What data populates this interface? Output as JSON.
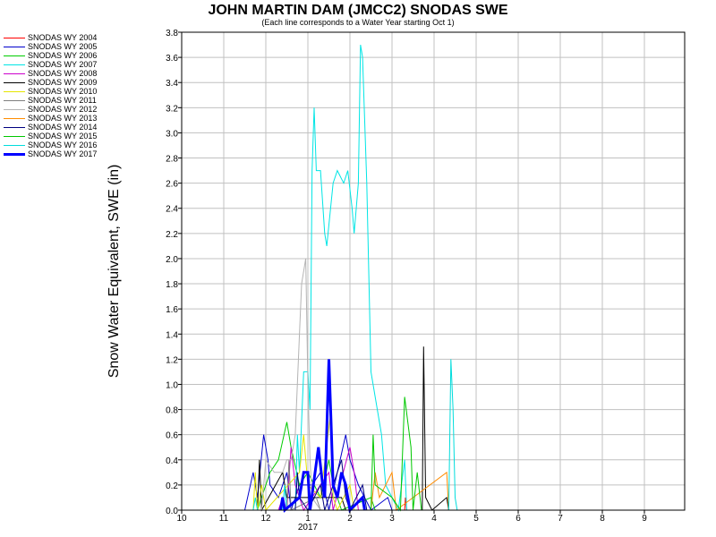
{
  "chart_data": {
    "type": "line",
    "title": "JOHN MARTIN DAM (JMCC2) SNODAS SWE",
    "subtitle": "(Each line corresponds to a Water Year starting Oct 1)",
    "ylabel": "Snow Water Equivalent, SWE (in)",
    "xlabel_year": "2017",
    "x_ticks": [
      "10",
      "11",
      "12",
      "1",
      "2",
      "3",
      "4",
      "5",
      "6",
      "7",
      "8",
      "9"
    ],
    "y_ticks": [
      "0.0",
      "0.2",
      "0.4",
      "0.6",
      "0.8",
      "1.0",
      "1.2",
      "1.4",
      "1.6",
      "1.8",
      "2.0",
      "2.2",
      "2.4",
      "2.6",
      "2.8",
      "3.0",
      "3.2",
      "3.4",
      "3.6",
      "3.8"
    ],
    "ylim": [
      0,
      3.8
    ],
    "grid": true,
    "legend_position": "left",
    "series": [
      {
        "name": "SNODAS WY 2004",
        "color": "#ff0000",
        "width": 1,
        "points": [
          [
            5.3,
            0
          ],
          [
            5.32,
            0.1
          ],
          [
            5.35,
            0
          ],
          [
            6.5,
            0
          ]
        ]
      },
      {
        "name": "SNODAS WY 2005",
        "color": "#0000cc",
        "width": 1,
        "points": [
          [
            1.5,
            0
          ],
          [
            1.7,
            0.3
          ],
          [
            1.8,
            0.1
          ],
          [
            1.95,
            0.6
          ],
          [
            2.05,
            0.4
          ],
          [
            2.1,
            0.2
          ],
          [
            2.3,
            0.1
          ],
          [
            2.5,
            0.3
          ],
          [
            2.6,
            0
          ],
          [
            2.8,
            0.2
          ],
          [
            3.1,
            0.2
          ],
          [
            3.3,
            0.3
          ],
          [
            3.5,
            0
          ],
          [
            3.9,
            0.6
          ],
          [
            4.0,
            0.4
          ],
          [
            4.2,
            0.2
          ],
          [
            4.5,
            0
          ],
          [
            4.9,
            0.1
          ],
          [
            5,
            0
          ]
        ]
      },
      {
        "name": "SNODAS WY 2006",
        "color": "#00cc00",
        "width": 1,
        "points": [
          [
            1.8,
            0
          ],
          [
            2.1,
            0.3
          ],
          [
            2.3,
            0.4
          ],
          [
            2.5,
            0.7
          ],
          [
            2.6,
            0.5
          ],
          [
            2.8,
            0.2
          ],
          [
            3.0,
            0.3
          ],
          [
            3.3,
            0.1
          ],
          [
            3.5,
            0.4
          ],
          [
            3.6,
            0.2
          ],
          [
            3.8,
            0
          ],
          [
            4.5,
            0.1
          ],
          [
            4.6,
            0
          ]
        ]
      },
      {
        "name": "SNODAS WY 2007",
        "color": "#00e5e5",
        "width": 1,
        "points": [
          [
            2.7,
            0
          ],
          [
            2.75,
            0.6
          ],
          [
            2.8,
            0.3
          ],
          [
            2.9,
            1.1
          ],
          [
            3.0,
            1.1
          ],
          [
            3.05,
            0.8
          ],
          [
            3.1,
            2.7
          ],
          [
            3.15,
            3.2
          ],
          [
            3.2,
            2.7
          ],
          [
            3.3,
            2.7
          ],
          [
            3.4,
            2.2
          ],
          [
            3.45,
            2.1
          ],
          [
            3.6,
            2.6
          ],
          [
            3.7,
            2.7
          ],
          [
            3.85,
            2.6
          ],
          [
            3.95,
            2.7
          ],
          [
            4.05,
            2.4
          ],
          [
            4.1,
            2.2
          ],
          [
            4.2,
            2.6
          ],
          [
            4.25,
            3.7
          ],
          [
            4.3,
            3.6
          ],
          [
            4.4,
            2.6
          ],
          [
            4.5,
            1.1
          ],
          [
            4.6,
            0.9
          ],
          [
            4.75,
            0.6
          ],
          [
            4.85,
            0.2
          ],
          [
            5.0,
            0.1
          ],
          [
            5.15,
            0
          ],
          [
            5.3,
            0.4
          ],
          [
            5.35,
            0
          ]
        ]
      },
      {
        "name": "SNODAS WY 2008",
        "color": "#cc00cc",
        "width": 1,
        "points": [
          [
            2.3,
            0
          ],
          [
            2.4,
            0.1
          ],
          [
            2.5,
            0
          ],
          [
            2.6,
            0.5
          ],
          [
            2.7,
            0.2
          ],
          [
            2.9,
            0
          ],
          [
            3.5,
            0.3
          ],
          [
            3.6,
            0
          ],
          [
            4.0,
            0.5
          ],
          [
            4.1,
            0.3
          ],
          [
            4.2,
            0
          ]
        ]
      },
      {
        "name": "SNODAS WY 2009",
        "color": "#000000",
        "width": 1,
        "points": [
          [
            1.8,
            0
          ],
          [
            1.85,
            0.4
          ],
          [
            1.9,
            0
          ],
          [
            2.4,
            0.3
          ],
          [
            2.5,
            0.1
          ],
          [
            3.8,
            0.1
          ],
          [
            3.9,
            0
          ],
          [
            5.72,
            0
          ],
          [
            5.75,
            1.3
          ],
          [
            5.8,
            0.1
          ],
          [
            5.95,
            0
          ],
          [
            6.3,
            0.1
          ],
          [
            6.35,
            0
          ]
        ]
      },
      {
        "name": "SNODAS WY 2010",
        "color": "#e5e500",
        "width": 1,
        "points": [
          [
            1.7,
            0
          ],
          [
            1.75,
            0.3
          ],
          [
            1.8,
            0
          ],
          [
            1.9,
            0.2
          ],
          [
            2.0,
            0
          ],
          [
            2.8,
            0.3
          ],
          [
            2.9,
            0.6
          ],
          [
            3.0,
            0.2
          ],
          [
            3.3,
            0.1
          ],
          [
            3.55,
            0.8
          ],
          [
            3.6,
            0.1
          ],
          [
            3.7,
            0
          ],
          [
            4.0,
            0.2
          ],
          [
            4.1,
            0
          ]
        ]
      },
      {
        "name": "SNODAS WY 2011",
        "color": "#808080",
        "width": 1,
        "points": [
          [
            2.5,
            0
          ],
          [
            2.55,
            0.4
          ],
          [
            2.6,
            0
          ],
          [
            3.2,
            0.1
          ],
          [
            3.3,
            0
          ]
        ]
      },
      {
        "name": "SNODAS WY 2012",
        "color": "#b4b4b4",
        "width": 1,
        "points": [
          [
            1.9,
            0
          ],
          [
            2.0,
            0.4
          ],
          [
            2.2,
            0.3
          ],
          [
            2.4,
            0.3
          ],
          [
            2.5,
            0.4
          ],
          [
            2.6,
            0.4
          ],
          [
            2.7,
            0.6
          ],
          [
            2.8,
            1.4
          ],
          [
            2.85,
            1.8
          ],
          [
            2.95,
            2.0
          ],
          [
            3.0,
            1.0
          ],
          [
            3.05,
            0.4
          ],
          [
            3.1,
            0.1
          ],
          [
            3.3,
            0
          ]
        ]
      },
      {
        "name": "SNODAS WY 2013",
        "color": "#ff8c00",
        "width": 1,
        "points": [
          [
            4.5,
            0
          ],
          [
            4.6,
            0.3
          ],
          [
            4.7,
            0.1
          ],
          [
            5.0,
            0.3
          ],
          [
            5.1,
            0
          ],
          [
            6.3,
            0.3
          ],
          [
            6.35,
            0
          ]
        ]
      },
      {
        "name": "SNODAS WY 2014",
        "color": "#000080",
        "width": 1,
        "points": [
          [
            2.7,
            0
          ],
          [
            2.75,
            0.3
          ],
          [
            2.8,
            0.1
          ],
          [
            3.0,
            0
          ],
          [
            3.3,
            0.2
          ],
          [
            3.4,
            0
          ],
          [
            3.8,
            0.4
          ],
          [
            3.9,
            0.1
          ],
          [
            4.0,
            0
          ],
          [
            4.3,
            0.2
          ],
          [
            4.4,
            0
          ]
        ]
      },
      {
        "name": "SNODAS WY 2015",
        "color": "#00c800",
        "width": 1,
        "points": [
          [
            4.5,
            0
          ],
          [
            4.55,
            0.6
          ],
          [
            4.6,
            0.2
          ],
          [
            5.0,
            0.1
          ],
          [
            5.2,
            0
          ],
          [
            5.3,
            0.9
          ],
          [
            5.45,
            0.5
          ],
          [
            5.5,
            0
          ],
          [
            5.6,
            0.3
          ],
          [
            5.7,
            0
          ]
        ]
      },
      {
        "name": "SNODAS WY 2016",
        "color": "#00dcdc",
        "width": 1,
        "points": [
          [
            1.7,
            0
          ],
          [
            1.75,
            0.1
          ],
          [
            1.8,
            0
          ],
          [
            2.4,
            0
          ],
          [
            2.45,
            0.2
          ],
          [
            2.5,
            0
          ],
          [
            6.35,
            0
          ],
          [
            6.4,
            1.2
          ],
          [
            6.45,
            0.8
          ],
          [
            6.5,
            0.1
          ],
          [
            6.55,
            0
          ]
        ]
      },
      {
        "name": "SNODAS WY 2017",
        "color": "#0000ff",
        "width": 3,
        "points": [
          [
            2.35,
            0
          ],
          [
            2.4,
            0.1
          ],
          [
            2.45,
            0
          ],
          [
            2.8,
            0.1
          ],
          [
            2.9,
            0.3
          ],
          [
            3.0,
            0.3
          ],
          [
            3.05,
            0
          ],
          [
            3.25,
            0.5
          ],
          [
            3.35,
            0.2
          ],
          [
            3.4,
            0.1
          ],
          [
            3.5,
            1.2
          ],
          [
            3.55,
            0.7
          ],
          [
            3.6,
            0.2
          ],
          [
            3.7,
            0.1
          ],
          [
            3.8,
            0.3
          ],
          [
            3.9,
            0.2
          ],
          [
            4.0,
            0
          ],
          [
            4.3,
            0.1
          ],
          [
            4.35,
            0
          ]
        ]
      }
    ]
  }
}
